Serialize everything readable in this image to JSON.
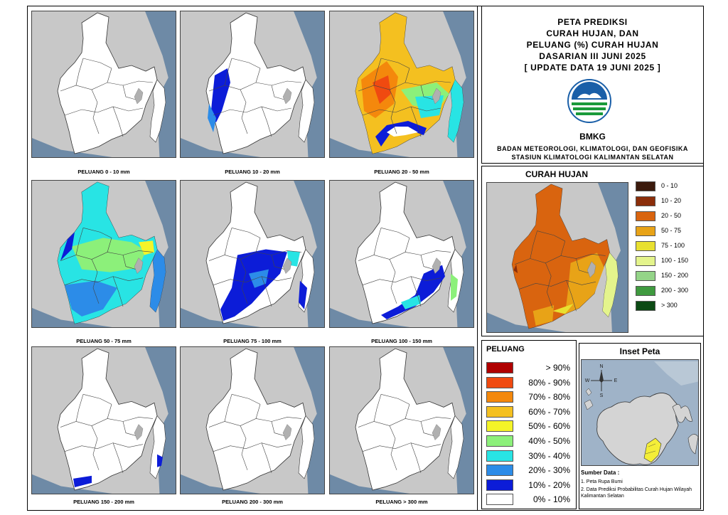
{
  "maps": [
    {
      "label": "PELUANG 0 - 10 mm"
    },
    {
      "label": "PELUANG 10 - 20 mm"
    },
    {
      "label": "PELUANG 20 - 50 mm"
    },
    {
      "label": "PELUANG 50 - 75 mm"
    },
    {
      "label": "PELUANG 75 - 100 mm"
    },
    {
      "label": "PELUANG 100 - 150 mm"
    },
    {
      "label": "PELUANG 150 - 200 mm"
    },
    {
      "label": "PELUANG 200 - 300 mm"
    },
    {
      "label": "PELUANG > 300 mm"
    }
  ],
  "title": {
    "line1": "PETA PREDIKSI",
    "line2": "CURAH HUJAN, DAN",
    "line3": "PELUANG (%) CURAH HUJAN",
    "line4": "DASARIAN III JUNI 2025",
    "line5": "[ UPDATE DATA 19 JUNI 2025 ]"
  },
  "logo_text": "BMKG",
  "agency": {
    "line1": "BADAN METEOROLOGI, KLIMATOLOGI, DAN GEOFISIKA",
    "line2": "STASIUN KLIMATOLOGI KALIMANTAN SELATAN"
  },
  "rain_legend": {
    "title": "CURAH HUJAN",
    "items": [
      {
        "label": "0 - 10",
        "color": "#3b1a0c"
      },
      {
        "label": "10 - 20",
        "color": "#8b2e0a"
      },
      {
        "label": "20 - 50",
        "color": "#d9640f"
      },
      {
        "label": "50 - 75",
        "color": "#e8a317"
      },
      {
        "label": "75 - 100",
        "color": "#e8e030"
      },
      {
        "label": "100 - 150",
        "color": "#e4f48c"
      },
      {
        "label": "150 - 200",
        "color": "#94d488"
      },
      {
        "label": "200 - 300",
        "color": "#3f9a3f"
      },
      {
        "label": "> 300",
        "color": "#0c4a14"
      }
    ]
  },
  "prob_legend": {
    "title": "PELUANG",
    "items": [
      {
        "label": "> 90%",
        "color": "#b00000"
      },
      {
        "label": "80% - 90%",
        "color": "#f04a10"
      },
      {
        "label": "70% - 80%",
        "color": "#f4880c"
      },
      {
        "label": "60% - 70%",
        "color": "#f4c020"
      },
      {
        "label": "50% - 60%",
        "color": "#f4f428"
      },
      {
        "label": "40% - 50%",
        "color": "#8cf07a"
      },
      {
        "label": "30% - 40%",
        "color": "#28e4e4"
      },
      {
        "label": "20% - 30%",
        "color": "#2c8ce8"
      },
      {
        "label": "10% - 20%",
        "color": "#0c1cd8"
      },
      {
        "label": "0% - 10%",
        "color": "#ffffff"
      }
    ]
  },
  "inset": {
    "title": "Inset Peta",
    "compass": {
      "n": "N",
      "s": "S",
      "e": "E",
      "w": "W"
    }
  },
  "sources": {
    "title": "Sumber Data :",
    "item1": "1. Peta Rupa Bumi",
    "item2": "2. Data Prediksi Probabilitas Curah Hujan Wilayah Kalimantan Selatan"
  }
}
